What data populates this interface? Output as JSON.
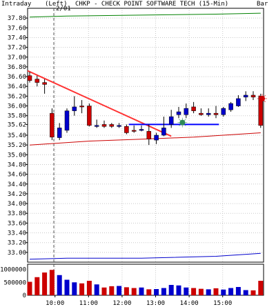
{
  "header": {
    "interval_label": "Intraday",
    "scale_label": "(Left)",
    "title": "CHKP - CHECK POINT SOFTWARE TECH (15-Min)",
    "style_label": "Bar",
    "date_marker": "2/01"
  },
  "chart_data": [
    {
      "type": "candlestick",
      "title": "CHKP - CHECK POINT SOFTWARE TECH (15-Min)",
      "ylim": [
        32.8,
        38.0
      ],
      "y_ticks": [
        "37.80",
        "37.60",
        "37.40",
        "37.20",
        "37.00",
        "36.80",
        "36.60",
        "36.40",
        "36.20",
        "36.00",
        "35.80",
        "35.62",
        "35.40",
        "35.20",
        "35.00",
        "34.80",
        "34.60",
        "34.40",
        "34.20",
        "34.00",
        "33.80",
        "33.60",
        "33.40",
        "33.20",
        "33.00"
      ],
      "x_ticks": [
        "10:00",
        "11:00",
        "12:00",
        "13:00",
        "14:00",
        "15:00"
      ],
      "candles": [
        {
          "o": 36.62,
          "h": 36.7,
          "l": 36.48,
          "c": 36.52
        },
        {
          "o": 36.55,
          "h": 36.62,
          "l": 36.4,
          "c": 36.48
        },
        {
          "o": 36.48,
          "h": 36.55,
          "l": 36.25,
          "c": 36.44
        },
        {
          "o": 35.85,
          "h": 35.95,
          "l": 35.3,
          "c": 35.36
        },
        {
          "o": 35.35,
          "h": 35.65,
          "l": 35.3,
          "c": 35.55
        },
        {
          "o": 35.5,
          "h": 35.95,
          "l": 35.45,
          "c": 35.9
        },
        {
          "o": 35.9,
          "h": 36.2,
          "l": 35.8,
          "c": 35.98
        },
        {
          "o": 36.0,
          "h": 36.12,
          "l": 35.85,
          "c": 35.98
        },
        {
          "o": 36.0,
          "h": 36.05,
          "l": 35.58,
          "c": 35.6
        },
        {
          "o": 35.6,
          "h": 35.72,
          "l": 35.55,
          "c": 35.6
        },
        {
          "o": 35.62,
          "h": 35.7,
          "l": 35.55,
          "c": 35.58
        },
        {
          "o": 35.62,
          "h": 35.65,
          "l": 35.55,
          "c": 35.58
        },
        {
          "o": 35.58,
          "h": 35.65,
          "l": 35.55,
          "c": 35.6
        },
        {
          "o": 35.58,
          "h": 35.62,
          "l": 35.42,
          "c": 35.45
        },
        {
          "o": 35.5,
          "h": 35.6,
          "l": 35.45,
          "c": 35.48
        },
        {
          "o": 35.5,
          "h": 35.6,
          "l": 35.48,
          "c": 35.52
        },
        {
          "o": 35.48,
          "h": 35.62,
          "l": 35.2,
          "c": 35.32
        },
        {
          "o": 35.3,
          "h": 35.45,
          "l": 35.22,
          "c": 35.4
        },
        {
          "o": 35.4,
          "h": 35.78,
          "l": 35.38,
          "c": 35.55
        },
        {
          "o": 35.62,
          "h": 35.92,
          "l": 35.55,
          "c": 35.78
        },
        {
          "o": 35.82,
          "h": 35.98,
          "l": 35.75,
          "c": 35.88
        },
        {
          "o": 35.82,
          "h": 36.05,
          "l": 35.75,
          "c": 35.95
        },
        {
          "o": 35.98,
          "h": 36.08,
          "l": 35.85,
          "c": 35.9
        },
        {
          "o": 35.85,
          "h": 35.95,
          "l": 35.8,
          "c": 35.82
        },
        {
          "o": 35.82,
          "h": 35.95,
          "l": 35.78,
          "c": 35.85
        },
        {
          "o": 35.85,
          "h": 36.0,
          "l": 35.75,
          "c": 35.82
        },
        {
          "o": 35.82,
          "h": 35.98,
          "l": 35.78,
          "c": 35.95
        },
        {
          "o": 35.92,
          "h": 36.08,
          "l": 35.88,
          "c": 36.05
        },
        {
          "o": 36.0,
          "h": 36.22,
          "l": 35.98,
          "c": 36.15
        },
        {
          "o": 36.18,
          "h": 36.3,
          "l": 36.1,
          "c": 36.22
        },
        {
          "o": 36.22,
          "h": 36.3,
          "l": 36.12,
          "c": 36.18
        },
        {
          "o": 36.2,
          "h": 36.25,
          "l": 35.55,
          "c": 35.6
        }
      ],
      "bull_color": "#0000cc",
      "bear_color": "#cc0000",
      "grid": true
    },
    {
      "type": "bar",
      "title": "",
      "ylim": [
        0,
        1200000
      ],
      "y_ticks": [
        "1000000",
        "500000",
        "0"
      ],
      "values": [
        520000,
        700000,
        880000,
        980000,
        780000,
        600000,
        500000,
        460000,
        560000,
        420000,
        300000,
        350000,
        360000,
        310000,
        280000,
        300000,
        230000,
        240000,
        280000,
        400000,
        380000,
        300000,
        280000,
        250000,
        230000,
        270000,
        220000,
        280000,
        320000,
        200000,
        190000,
        560000
      ]
    }
  ],
  "colors": {
    "upper_band": "#008000",
    "lower_band": "#0000cc",
    "ma_line": "#cc0000",
    "trendline": "#ff3333",
    "support_line": "#0000ff"
  }
}
